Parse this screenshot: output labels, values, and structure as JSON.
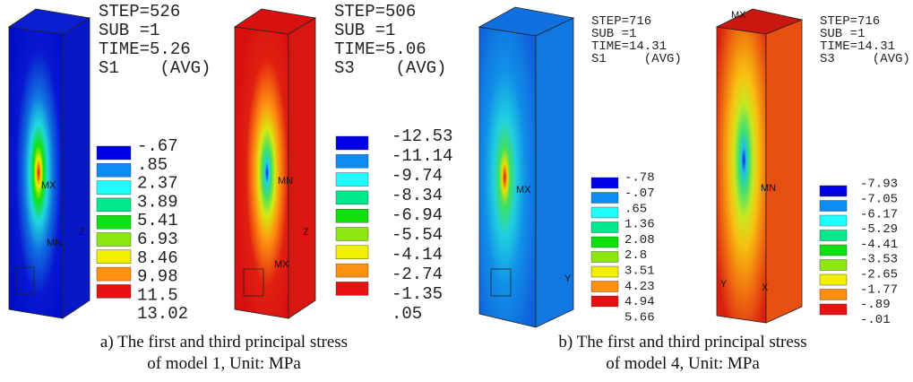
{
  "legend_colors": [
    "#0000e8",
    "#0a8cf0",
    "#20ffff",
    "#00e88c",
    "#10e010",
    "#8ce810",
    "#f0f000",
    "#ff9010",
    "#e81010"
  ],
  "panels": [
    {
      "header": [
        "STEP=526",
        "SUB =1",
        "TIME=5.26",
        "S1    (AVG)"
      ],
      "legend": [
        "-.67",
        ".85",
        "2.37",
        "3.89",
        "5.41",
        "6.93",
        "8.46",
        "9.98",
        "11.5",
        "13.02"
      ],
      "markers": [
        "MX",
        "MN",
        "Z"
      ]
    },
    {
      "header": [
        "STEP=506",
        "SUB =1",
        "TIME=5.06",
        "S3    (AVG)"
      ],
      "legend": [
        "-12.53",
        "-11.14",
        "-9.74",
        "-8.34",
        "-6.94",
        "-5.54",
        "-4.14",
        "-2.74",
        "-1.35",
        ".05"
      ],
      "markers": [
        "MN",
        "MX",
        "Z"
      ]
    },
    {
      "header": [
        "STEP=716",
        "SUB =1",
        "TIME=14.31",
        "S1     (AVG)"
      ],
      "legend": [
        "-.78",
        "-.07",
        ".65",
        "1.36",
        "2.08",
        "2.8",
        "3.51",
        "4.23",
        "4.94",
        "5.66"
      ],
      "markers": [
        "MX",
        "Y"
      ]
    },
    {
      "header": [
        "STEP=716",
        "SUB =1",
        "TIME=14.31",
        "S3     (AVG)"
      ],
      "legend": [
        "-7.93",
        "-7.05",
        "-6.17",
        "-5.29",
        "-4.41",
        "-3.53",
        "-2.65",
        "-1.77",
        "-.89",
        "-.01"
      ],
      "markers": [
        "MX",
        "MN",
        "Y",
        "X"
      ]
    }
  ],
  "captions": [
    {
      "lines": [
        "a) The first and third principal stress",
        "of model 1, Unit: MPa"
      ]
    },
    {
      "lines": [
        "b) The first and third principal stress",
        "of model 4, Unit: MPa"
      ]
    }
  ]
}
